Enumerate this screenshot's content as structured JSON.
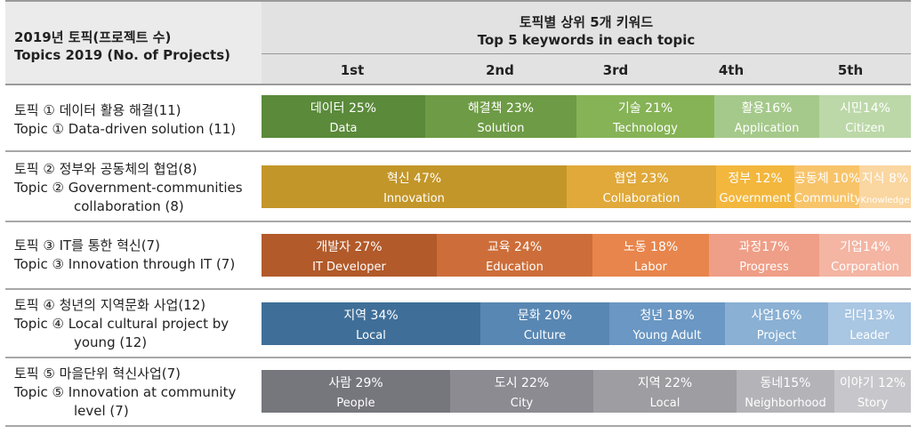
{
  "header": {
    "left_title_ko": "2019년 토픽(프로젝트 수)",
    "left_title_en": "Topics 2019 (No. of Projects)",
    "right_title_ko": "토픽별 상위 5개 키워드",
    "right_title_en": "Top 5 keywords in each topic",
    "ranks": [
      "1st",
      "2nd",
      "3rd",
      "4th",
      "5th"
    ]
  },
  "chart_data": {
    "type": "bar",
    "title": "토픽별 상위 5개 키워드 / Top 5 keywords in each topic",
    "categories": [
      "Topic ①",
      "Topic ②",
      "Topic ③",
      "Topic ④",
      "Topic ⑤"
    ],
    "topics": [
      {
        "label_ko": "토픽 ① 데이터 활용 해결(11)",
        "label_en": [
          "Topic ① Data-driven solution (11)"
        ],
        "segments": [
          {
            "ko": "데이터 25%",
            "en": "Data",
            "value": 25,
            "color": "#5a8a3a"
          },
          {
            "ko": "해결책 23%",
            "en": "Solution",
            "value": 23,
            "color": "#6e9b45"
          },
          {
            "ko": "기술 21%",
            "en": "Technology",
            "value": 21,
            "color": "#86b356"
          },
          {
            "ko": "활용16%",
            "en": "Application",
            "value": 16,
            "color": "#a5c98b"
          },
          {
            "ko": "시민14%",
            "en": "Citizen",
            "value": 14,
            "color": "#bcd8a8"
          }
        ]
      },
      {
        "label_ko": "토픽 ② 정부와 공동체의 협업(8)",
        "label_en": [
          "Topic ② Government-communities",
          "collaboration (8)"
        ],
        "segments": [
          {
            "ko": "혁신 47%",
            "en": "Innovation",
            "value": 47,
            "color": "#c39629"
          },
          {
            "ko": "협업 23%",
            "en": "Collaboration",
            "value": 23,
            "color": "#e0a93a"
          },
          {
            "ko": "정부 12%",
            "en": "Government",
            "value": 12,
            "color": "#f3b73d"
          },
          {
            "ko": "공동체 10%",
            "en": "Community",
            "value": 10,
            "color": "#f8c46a"
          },
          {
            "ko": "지식 8%",
            "en": "Knowledge",
            "value": 8,
            "color": "#fad6a0"
          }
        ]
      },
      {
        "label_ko": "토픽 ③ IT를 통한 혁신(7)",
        "label_en": [
          "Topic ③ Innovation through IT (7)"
        ],
        "segments": [
          {
            "ko": "개발자 27%",
            "en": "IT Developer",
            "value": 27,
            "color": "#b25a2a"
          },
          {
            "ko": "교육 24%",
            "en": "Education",
            "value": 24,
            "color": "#cd6e3a"
          },
          {
            "ko": "노동 18%",
            "en": "Labor",
            "value": 18,
            "color": "#e8854c"
          },
          {
            "ko": "과정17%",
            "en": "Progress",
            "value": 17,
            "color": "#ef9e87"
          },
          {
            "ko": "기업14%",
            "en": "Corporation",
            "value": 14,
            "color": "#f4b5a3"
          }
        ]
      },
      {
        "label_ko": "토픽 ④ 청년의 지역문화 사업(12)",
        "label_en": [
          "Topic ④ Local cultural project by",
          "young (12)"
        ],
        "segments": [
          {
            "ko": "지역 34%",
            "en": "Local",
            "value": 34,
            "color": "#3f6f98"
          },
          {
            "ko": "문화 20%",
            "en": "Culture",
            "value": 20,
            "color": "#5987b3"
          },
          {
            "ko": "청년 18%",
            "en": "Young Adult",
            "value": 18,
            "color": "#6a97c3"
          },
          {
            "ko": "사업16%",
            "en": "Project",
            "value": 16,
            "color": "#8ab0d3"
          },
          {
            "ko": "리더13%",
            "en": "Leader",
            "value": 13,
            "color": "#a9c6e2"
          }
        ]
      },
      {
        "label_ko": "토픽 ⑤ 마을단위 혁신사업(7)",
        "label_en": [
          "Topic ⑤ Innovation at community",
          "level (7)"
        ],
        "segments": [
          {
            "ko": "사람 29%",
            "en": "People",
            "value": 29,
            "color": "#76767d"
          },
          {
            "ko": "도시 22%",
            "en": "City",
            "value": 22,
            "color": "#8b8b91"
          },
          {
            "ko": "지역 22%",
            "en": "Local",
            "value": 22,
            "color": "#9d9da2"
          },
          {
            "ko": "동네15%",
            "en": "Neighborhood",
            "value": 15,
            "color": "#b3b3b8"
          },
          {
            "ko": "이야기 12%",
            "en": "Story",
            "value": 12,
            "color": "#c7c7cb"
          }
        ]
      }
    ]
  }
}
